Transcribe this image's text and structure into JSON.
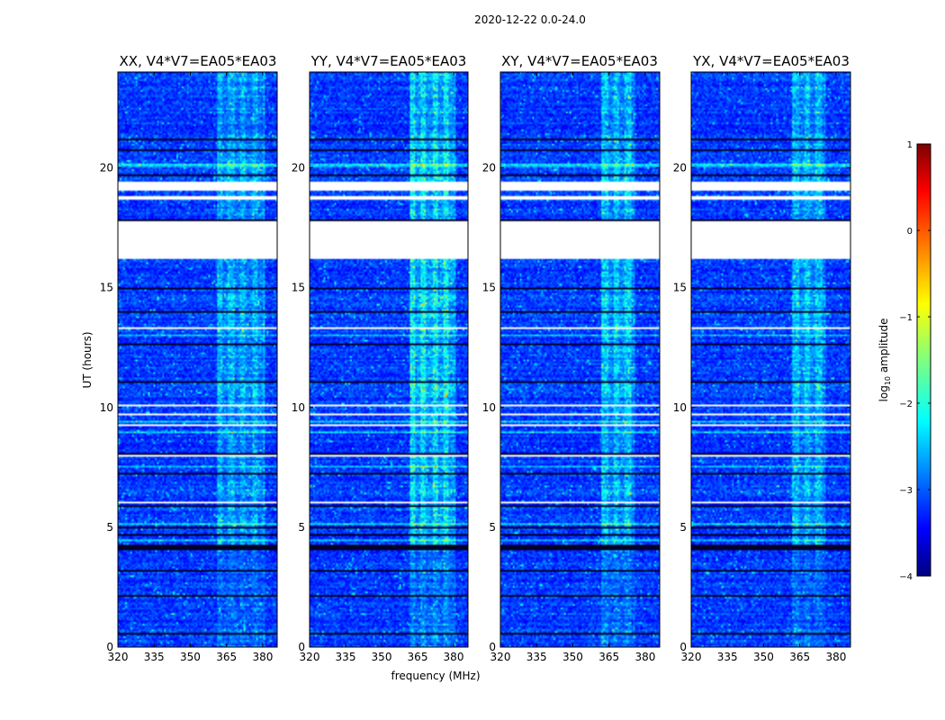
{
  "chart_data": {
    "type": "heatmap",
    "suptitle": "2020-12-22 0.0-24.0",
    "xlabel": "frequency (MHz)",
    "ylabel": "UT (hours)",
    "xlim": [
      320,
      386
    ],
    "ylim": [
      0,
      24
    ],
    "x_ticks": [
      320,
      335,
      350,
      365,
      380
    ],
    "x_tick_labels": [
      "320",
      "335",
      "350",
      "365",
      "380"
    ],
    "y_ticks": [
      0,
      5,
      10,
      15,
      20
    ],
    "y_tick_labels": [
      "0",
      "5",
      "10",
      "15",
      "20"
    ],
    "panels": [
      {
        "title": "XX, V4*V7=EA05*EA03",
        "rfi_start_mhz": 361,
        "rfi_end_mhz": 380.5,
        "rfi_strength": 0.45
      },
      {
        "title": "YY, V4*V7=EA05*EA03",
        "rfi_start_mhz": 361.5,
        "rfi_end_mhz": 380.5,
        "rfi_strength": 0.7
      },
      {
        "title": "XY, V4*V7=EA05*EA03",
        "rfi_start_mhz": 362,
        "rfi_end_mhz": 376,
        "rfi_strength": 0.55
      },
      {
        "title": "YX, V4*V7=EA05*EA03",
        "rfi_start_mhz": 362,
        "rfi_end_mhz": 376,
        "rfi_strength": 0.5
      }
    ],
    "flagged_hours": [
      [
        16.2,
        17.8
      ],
      [
        18.7,
        18.8
      ],
      [
        19.05,
        19.4
      ],
      [
        13.3,
        13.35
      ],
      [
        10.25,
        10.3
      ]
    ],
    "colorbar": {
      "label": "log10 amplitude",
      "range": [
        -4,
        1
      ],
      "ticks": [
        1,
        0,
        -1,
        -2,
        -3,
        -4
      ],
      "tick_labels": [
        "1",
        "0",
        "−1",
        "−2",
        "−3",
        "−4"
      ],
      "colormap": [
        "#00007f",
        "#0000ff",
        "#007fff",
        "#00ffff",
        "#7fff7f",
        "#ffff00",
        "#ff7f00",
        "#ff0000",
        "#7f0000"
      ]
    }
  }
}
